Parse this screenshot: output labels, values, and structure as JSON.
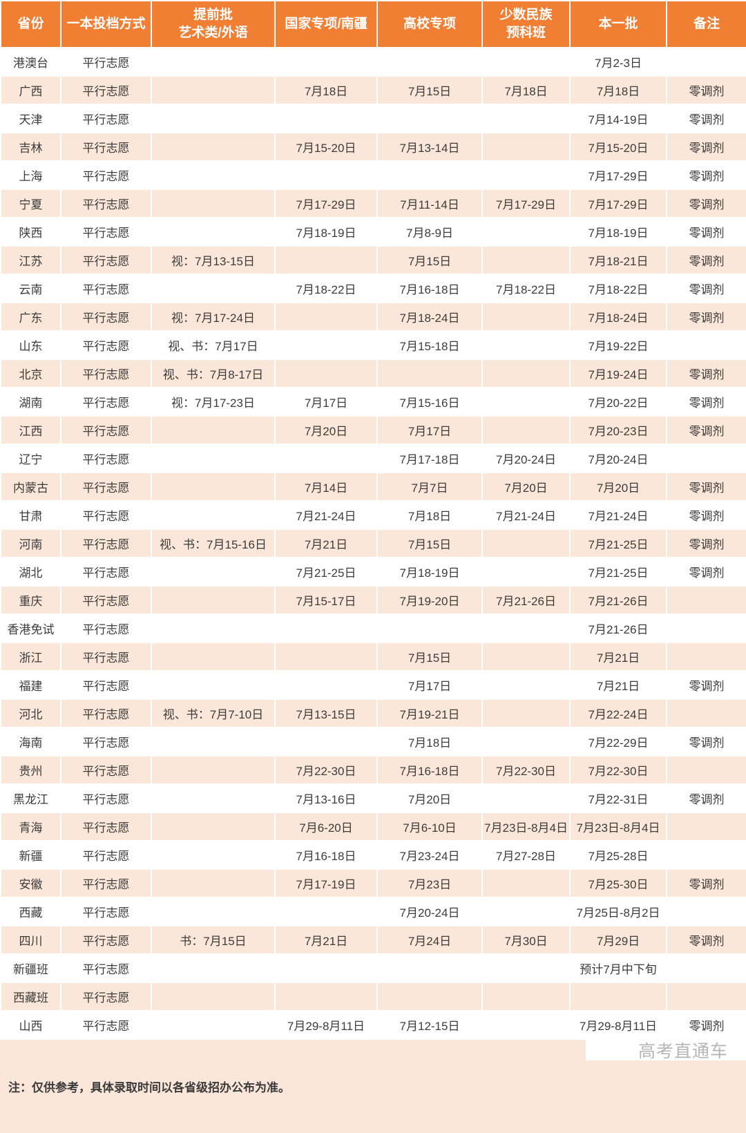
{
  "colors": {
    "header_bg": "#F07E33",
    "stripe_bg": "#FBE7D9",
    "header_text": "#FFFFFF",
    "text": "#3B3B3B",
    "watermark": "#B5B5B5"
  },
  "table": {
    "columns": [
      {
        "key": "province",
        "label": "省份"
      },
      {
        "key": "method",
        "label": "一本投档方式"
      },
      {
        "key": "early_art",
        "label": "提前批\n艺术类/外语"
      },
      {
        "key": "national",
        "label": "国家专项/南疆"
      },
      {
        "key": "university",
        "label": "高校专项"
      },
      {
        "key": "minority",
        "label": "少数民族\n预科班"
      },
      {
        "key": "batch1",
        "label": "本一批"
      },
      {
        "key": "remark",
        "label": "备注"
      }
    ],
    "rows": [
      {
        "province": "港澳台",
        "method": "平行志愿",
        "early_art": "",
        "national": "",
        "university": "",
        "minority": "",
        "batch1": "7月2-3日",
        "remark": ""
      },
      {
        "province": "广西",
        "method": "平行志愿",
        "early_art": "",
        "national": "7月18日",
        "university": "7月15日",
        "minority": "7月18日",
        "batch1": "7月18日",
        "remark": "零调剂"
      },
      {
        "province": "天津",
        "method": "平行志愿",
        "early_art": "",
        "national": "",
        "university": "",
        "minority": "",
        "batch1": "7月14-19日",
        "remark": "零调剂"
      },
      {
        "province": "吉林",
        "method": "平行志愿",
        "early_art": "",
        "national": "7月15-20日",
        "university": "7月13-14日",
        "minority": "",
        "batch1": "7月15-20日",
        "remark": "零调剂"
      },
      {
        "province": "上海",
        "method": "平行志愿",
        "early_art": "",
        "national": "",
        "university": "",
        "minority": "",
        "batch1": "7月17-29日",
        "remark": "零调剂"
      },
      {
        "province": "宁夏",
        "method": "平行志愿",
        "early_art": "",
        "national": "7月17-29日",
        "university": "7月11-14日",
        "minority": "7月17-29日",
        "batch1": "7月17-29日",
        "remark": "零调剂"
      },
      {
        "province": "陕西",
        "method": "平行志愿",
        "early_art": "",
        "national": "7月18-19日",
        "university": "7月8-9日",
        "minority": "",
        "batch1": "7月18-19日",
        "remark": "零调剂"
      },
      {
        "province": "江苏",
        "method": "平行志愿",
        "early_art": "视：7月13-15日",
        "national": "",
        "university": "7月15日",
        "minority": "",
        "batch1": "7月18-21日",
        "remark": "零调剂"
      },
      {
        "province": "云南",
        "method": "平行志愿",
        "early_art": "",
        "national": "7月18-22日",
        "university": "7月16-18日",
        "minority": "7月18-22日",
        "batch1": "7月18-22日",
        "remark": "零调剂"
      },
      {
        "province": "广东",
        "method": "平行志愿",
        "early_art": "视：7月17-24日",
        "national": "",
        "university": "7月18-24日",
        "minority": "",
        "batch1": "7月18-24日",
        "remark": "零调剂"
      },
      {
        "province": "山东",
        "method": "平行志愿",
        "early_art": "视、书：7月17日",
        "national": "",
        "university": "7月15-18日",
        "minority": "",
        "batch1": "7月19-22日",
        "remark": ""
      },
      {
        "province": "北京",
        "method": "平行志愿",
        "early_art": "视、书：7月8-17日",
        "national": "",
        "university": "",
        "minority": "",
        "batch1": "7月19-24日",
        "remark": "零调剂"
      },
      {
        "province": "湖南",
        "method": "平行志愿",
        "early_art": "视：7月17-23日",
        "national": "7月17日",
        "university": "7月15-16日",
        "minority": "",
        "batch1": "7月20-22日",
        "remark": "零调剂"
      },
      {
        "province": "江西",
        "method": "平行志愿",
        "early_art": "",
        "national": "7月20日",
        "university": "7月17日",
        "minority": "",
        "batch1": "7月20-23日",
        "remark": "零调剂"
      },
      {
        "province": "辽宁",
        "method": "平行志愿",
        "early_art": "",
        "national": "",
        "university": "7月17-18日",
        "minority": "7月20-24日",
        "batch1": "7月20-24日",
        "remark": ""
      },
      {
        "province": "内蒙古",
        "method": "平行志愿",
        "early_art": "",
        "national": "7月14日",
        "university": "7月7日",
        "minority": "7月20日",
        "batch1": "7月20日",
        "remark": "零调剂"
      },
      {
        "province": "甘肃",
        "method": "平行志愿",
        "early_art": "",
        "national": "7月21-24日",
        "university": "7月18日",
        "minority": "7月21-24日",
        "batch1": "7月21-24日",
        "remark": "零调剂"
      },
      {
        "province": "河南",
        "method": "平行志愿",
        "early_art": "视、书：7月15-16日",
        "national": "7月21日",
        "university": "7月15日",
        "minority": "",
        "batch1": "7月21-25日",
        "remark": "零调剂"
      },
      {
        "province": "湖北",
        "method": "平行志愿",
        "early_art": "",
        "national": "7月21-25日",
        "university": "7月18-19日",
        "minority": "",
        "batch1": "7月21-25日",
        "remark": "零调剂"
      },
      {
        "province": "重庆",
        "method": "平行志愿",
        "early_art": "",
        "national": "7月15-17日",
        "university": "7月19-20日",
        "minority": "7月21-26日",
        "batch1": "7月21-26日",
        "remark": ""
      },
      {
        "province": "香港免试",
        "method": "平行志愿",
        "early_art": "",
        "national": "",
        "university": "",
        "minority": "",
        "batch1": "7月21-26日",
        "remark": ""
      },
      {
        "province": "浙江",
        "method": "平行志愿",
        "early_art": "",
        "national": "",
        "university": "7月15日",
        "minority": "",
        "batch1": "7月21日",
        "remark": ""
      },
      {
        "province": "福建",
        "method": "平行志愿",
        "early_art": "",
        "national": "",
        "university": "7月17日",
        "minority": "",
        "batch1": "7月21日",
        "remark": "零调剂"
      },
      {
        "province": "河北",
        "method": "平行志愿",
        "early_art": "视、书：7月7-10日",
        "national": "7月13-15日",
        "university": "7月19-21日",
        "minority": "",
        "batch1": "7月22-24日",
        "remark": ""
      },
      {
        "province": "海南",
        "method": "平行志愿",
        "early_art": "",
        "national": "",
        "university": "7月18日",
        "minority": "",
        "batch1": "7月22-29日",
        "remark": "零调剂"
      },
      {
        "province": "贵州",
        "method": "平行志愿",
        "early_art": "",
        "national": "7月22-30日",
        "university": "7月16-18日",
        "minority": "7月22-30日",
        "batch1": "7月22-30日",
        "remark": ""
      },
      {
        "province": "黑龙江",
        "method": "平行志愿",
        "early_art": "",
        "national": "7月13-16日",
        "university": "7月20日",
        "minority": "",
        "batch1": "7月22-31日",
        "remark": "零调剂"
      },
      {
        "province": "青海",
        "method": "平行志愿",
        "early_art": "",
        "national": "7月6-20日",
        "university": "7月6-10日",
        "minority": "7月23日-8月4日",
        "batch1": "7月23日-8月4日",
        "remark": ""
      },
      {
        "province": "新疆",
        "method": "平行志愿",
        "early_art": "",
        "national": "7月16-18日",
        "university": "7月23-24日",
        "minority": "7月27-28日",
        "batch1": "7月25-28日",
        "remark": ""
      },
      {
        "province": "安徽",
        "method": "平行志愿",
        "early_art": "",
        "national": "7月17-19日",
        "university": "7月23日",
        "minority": "",
        "batch1": "7月25-30日",
        "remark": "零调剂"
      },
      {
        "province": "西藏",
        "method": "平行志愿",
        "early_art": "",
        "national": "",
        "university": "7月20-24日",
        "minority": "",
        "batch1": "7月25日-8月2日",
        "remark": ""
      },
      {
        "province": "四川",
        "method": "平行志愿",
        "early_art": "书：7月15日",
        "national": "7月21日",
        "university": "7月24日",
        "minority": "7月30日",
        "batch1": "7月29日",
        "remark": "零调剂"
      },
      {
        "province": "新疆班",
        "method": "平行志愿",
        "early_art": "",
        "national": "",
        "university": "",
        "minority": "",
        "batch1": "预计7月中下旬",
        "remark": ""
      },
      {
        "province": "西藏班",
        "method": "平行志愿",
        "early_art": "",
        "national": "",
        "university": "",
        "minority": "",
        "batch1": "",
        "remark": ""
      },
      {
        "province": "山西",
        "method": "平行志愿",
        "early_art": "",
        "national": "7月29-8月11日",
        "university": "7月12-15日",
        "minority": "",
        "batch1": "7月29-8月11日",
        "remark": "零调剂"
      }
    ]
  },
  "footer": {
    "note": "注：仅供参考，具体录取时间以各省级招办公布为准。",
    "watermark": "高考直通车"
  }
}
